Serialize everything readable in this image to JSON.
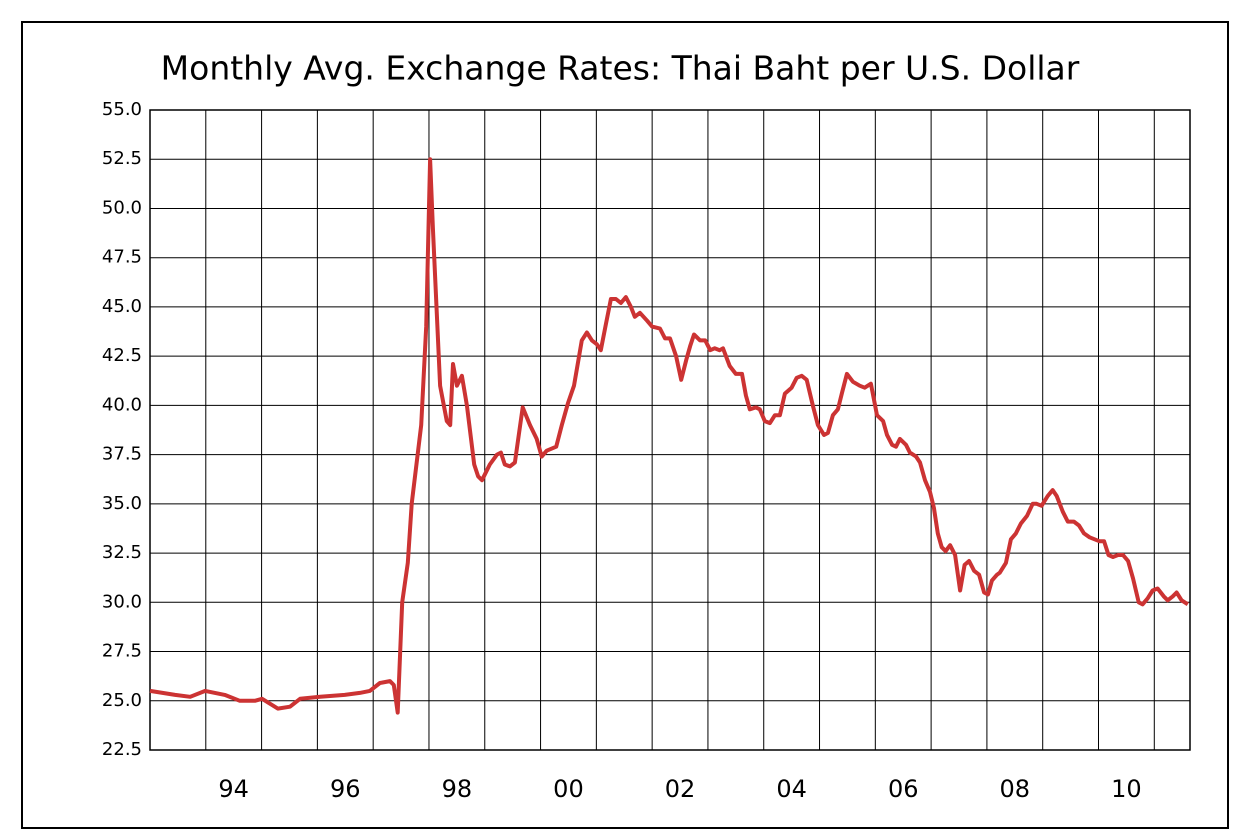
{
  "chart_data": {
    "type": "line",
    "title": "Monthly Avg. Exchange Rates: Thai Baht per U.S. Dollar",
    "x": [
      1993.0,
      1993.45,
      1993.72,
      1993.99,
      1994.34,
      1994.61,
      1994.88,
      1995.01,
      1995.29,
      1995.51,
      1995.69,
      1996.05,
      1996.49,
      1996.76,
      1996.94,
      1997.12,
      1997.3,
      1997.37,
      1997.44,
      1997.52,
      1997.62,
      1997.69,
      1997.86,
      1997.95,
      1998.02,
      1998.07,
      1998.2,
      1998.32,
      1998.38,
      1998.43,
      1998.5,
      1998.59,
      1998.68,
      1998.81,
      1998.88,
      1998.95,
      1999.09,
      1999.22,
      1999.29,
      1999.36,
      1999.45,
      1999.54,
      1999.61,
      1999.68,
      1999.81,
      1999.93,
      2000.02,
      2000.11,
      2000.28,
      2000.38,
      2000.49,
      2000.6,
      2000.74,
      2000.83,
      2000.92,
      2001.01,
      2001.08,
      2001.17,
      2001.26,
      2001.35,
      2001.44,
      2001.53,
      2001.62,
      2001.69,
      2001.78,
      2001.91,
      2002.0,
      2002.14,
      2002.23,
      2002.32,
      2002.43,
      2002.52,
      2002.61,
      2002.68,
      2002.75,
      2002.86,
      2002.95,
      2003.04,
      2003.12,
      2003.21,
      2003.27,
      2003.39,
      2003.5,
      2003.61,
      2003.68,
      2003.75,
      2003.86,
      2003.93,
      2004.02,
      2004.11,
      2004.2,
      2004.29,
      2004.38,
      2004.5,
      2004.59,
      2004.68,
      2004.77,
      2004.88,
      2004.97,
      2005.08,
      2005.15,
      2005.24,
      2005.33,
      2005.4,
      2005.49,
      2005.6,
      2005.72,
      2005.81,
      2005.92,
      2006.03,
      2006.14,
      2006.21,
      2006.3,
      2006.37,
      2006.44,
      2006.55,
      2006.62,
      2006.73,
      2006.8,
      2006.89,
      2006.98,
      2007.05,
      2007.12,
      2007.19,
      2007.26,
      2007.34,
      2007.43,
      2007.52,
      2007.6,
      2007.68,
      2007.77,
      2007.86,
      2007.95,
      2008.02,
      2008.09,
      2008.18,
      2008.23,
      2008.34,
      2008.43,
      2008.52,
      2008.61,
      2008.72,
      2008.82,
      2008.89,
      2008.98,
      2009.09,
      2009.18,
      2009.25,
      2009.36,
      2009.45,
      2009.56,
      2009.65,
      2009.74,
      2009.84,
      2009.93,
      2010.02,
      2010.1,
      2010.18,
      2010.26,
      2010.35,
      2010.44,
      2010.53,
      2010.62,
      2010.72,
      2010.79,
      2010.88,
      2010.97,
      2011.06,
      2011.17,
      2011.24,
      2011.33,
      2011.4,
      2011.49,
      2011.6
    ],
    "series": [
      {
        "color": "#cc3333",
        "values": [
          25.5,
          25.3,
          25.2,
          25.5,
          25.3,
          25.0,
          25.0,
          25.1,
          24.6,
          24.7,
          25.1,
          25.2,
          25.3,
          25.4,
          25.5,
          25.9,
          26.0,
          25.8,
          24.4,
          30.0,
          32.0,
          35.0,
          39.0,
          44.0,
          52.5,
          49.0,
          41.0,
          39.2,
          39.0,
          42.1,
          41.0,
          41.5,
          40.0,
          37.0,
          36.4,
          36.2,
          37.0,
          37.5,
          37.6,
          37.0,
          36.9,
          37.1,
          38.5,
          39.9,
          39.0,
          38.3,
          37.4,
          37.7,
          37.9,
          39.0,
          40.1,
          41.0,
          43.3,
          43.7,
          43.3,
          43.1,
          42.8,
          44.1,
          45.4,
          45.4,
          45.2,
          45.5,
          45.0,
          44.5,
          44.7,
          44.3,
          44.0,
          43.9,
          43.4,
          43.4,
          42.5,
          41.3,
          42.3,
          43.0,
          43.6,
          43.3,
          43.3,
          42.8,
          42.9,
          42.8,
          42.9,
          42.0,
          41.6,
          41.6,
          40.5,
          39.8,
          39.9,
          39.8,
          39.2,
          39.1,
          39.5,
          39.5,
          40.6,
          40.9,
          41.4,
          41.5,
          41.3,
          40.0,
          39.0,
          38.5,
          38.6,
          39.5,
          39.8,
          40.6,
          41.6,
          41.2,
          41.0,
          40.9,
          41.1,
          39.5,
          39.2,
          38.5,
          38.0,
          37.9,
          38.3,
          38.0,
          37.6,
          37.4,
          37.1,
          36.2,
          35.6,
          34.8,
          33.5,
          32.8,
          32.6,
          32.9,
          32.4,
          30.6,
          31.9,
          32.1,
          31.6,
          31.4,
          30.5,
          30.4,
          31.1,
          31.4,
          31.5,
          32.0,
          33.2,
          33.5,
          34.0,
          34.4,
          35.0,
          35.0,
          34.9,
          35.4,
          35.7,
          35.4,
          34.6,
          34.1,
          34.1,
          33.9,
          33.5,
          33.3,
          33.2,
          33.1,
          33.1,
          32.4,
          32.3,
          32.4,
          32.4,
          32.1,
          31.2,
          30.0,
          29.9,
          30.2,
          30.6,
          30.7,
          30.3,
          30.1,
          30.3,
          30.5,
          30.1,
          29.9
        ]
      }
    ],
    "xlim": [
      1993,
      2011.64
    ],
    "xticks": [
      {
        "value": 1994.5,
        "label": "94"
      },
      {
        "value": 1996.5,
        "label": "96"
      },
      {
        "value": 1998.5,
        "label": "98"
      },
      {
        "value": 2000.5,
        "label": "00"
      },
      {
        "value": 2002.5,
        "label": "02"
      },
      {
        "value": 2004.5,
        "label": "04"
      },
      {
        "value": 2006.5,
        "label": "06"
      },
      {
        "value": 2008.5,
        "label": "08"
      },
      {
        "value": 2010.5,
        "label": "10"
      }
    ],
    "xgrid": [
      1994,
      1995,
      1996,
      1997,
      1998,
      1999,
      2000,
      2001,
      2002,
      2003,
      2004,
      2005,
      2006,
      2007,
      2008,
      2009,
      2010,
      2011
    ],
    "ylim": [
      22.5,
      55
    ],
    "yticks": [
      22.5,
      {
        "value": 25,
        "label": "25.0"
      },
      27.5,
      {
        "value": 30,
        "label": "30.0"
      },
      32.5,
      {
        "value": 35,
        "label": "35.0"
      },
      37.5,
      {
        "value": 40,
        "label": "40.0"
      },
      42.5,
      {
        "value": 45,
        "label": "45.0"
      },
      47.5,
      {
        "value": 50,
        "label": "50.0"
      },
      52.5,
      {
        "value": 55,
        "label": "55.0"
      }
    ],
    "grid": true
  }
}
